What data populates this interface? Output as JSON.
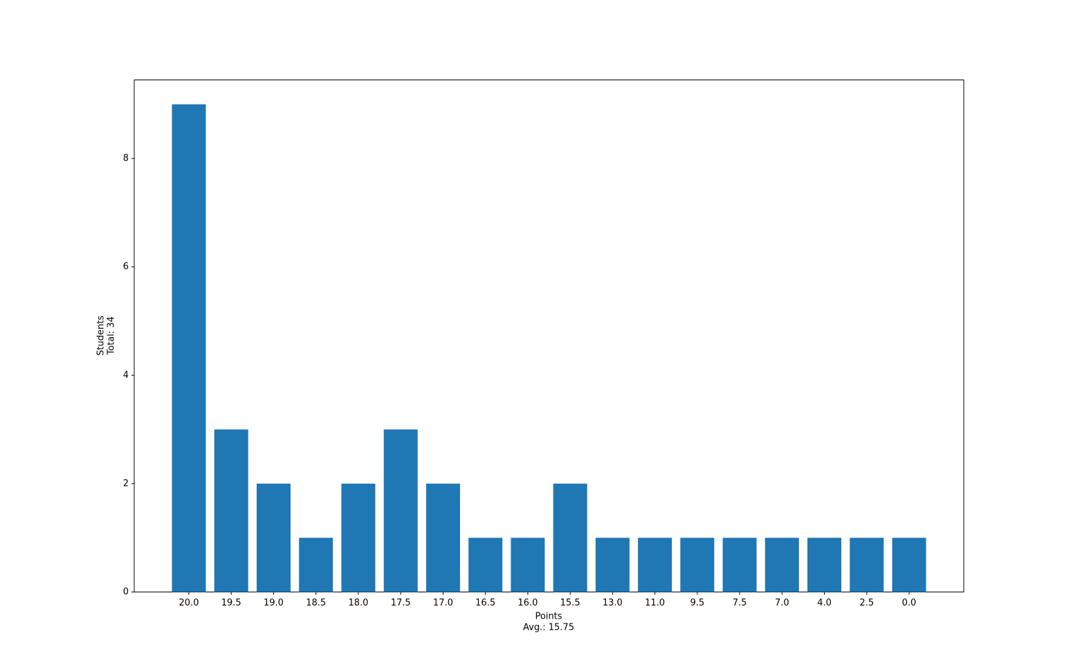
{
  "chart_data": {
    "type": "bar",
    "x_label": [
      "Points",
      "Avg.: 15.75"
    ],
    "y_label": [
      "Students",
      "Total: 34"
    ],
    "categories": [
      "20.0",
      "19.5",
      "19.0",
      "18.5",
      "18.0",
      "17.5",
      "17.0",
      "16.5",
      "16.0",
      "15.5",
      "13.0",
      "11.0",
      "9.5",
      "7.5",
      "7.0",
      "4.0",
      "2.5",
      "0.0"
    ],
    "values": [
      9,
      3,
      2,
      1,
      2,
      3,
      2,
      1,
      1,
      2,
      1,
      1,
      1,
      1,
      1,
      1,
      1,
      1
    ],
    "color": "#1f77b4",
    "ylim": [
      0,
      9.45
    ],
    "yticks": [
      0,
      2,
      4,
      6,
      8
    ],
    "grid": false
  }
}
